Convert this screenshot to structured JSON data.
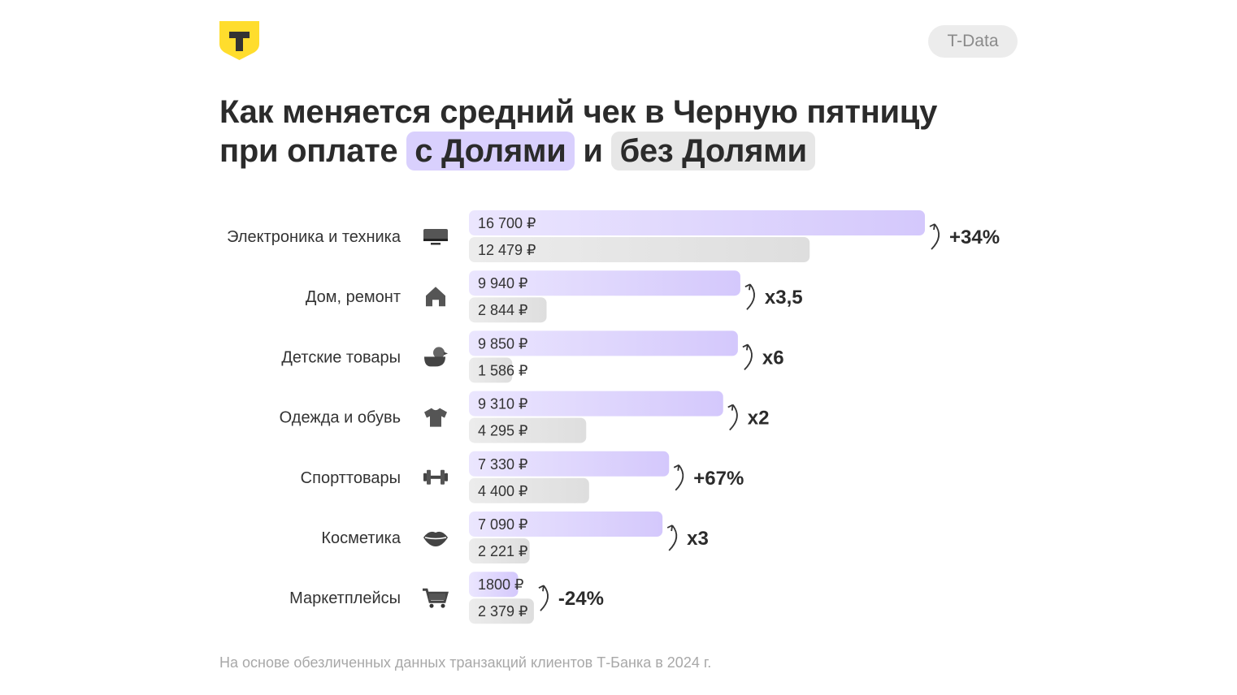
{
  "header": {
    "brand_letter": "T",
    "badge": "T-Data"
  },
  "title": {
    "line1": "Как меняется средний чек в Черную пятницу",
    "line2_prefix": "при оплате ",
    "highlight1": "с Долями",
    "connector": " и ",
    "highlight2": "без Долями"
  },
  "footer": "На основе обезличенных данных транзакций клиентов Т-Банка в 2024 г.",
  "colors": {
    "with": "#d6cbfc",
    "without": "#e3e3e3",
    "logo": "#ffdd2d"
  },
  "chart_data": {
    "type": "bar",
    "orientation": "horizontal",
    "currency": "₽",
    "categories": [
      "Электроника и техника",
      "Дом, ремонт",
      "Детские товары",
      "Одежда и обувь",
      "Спорттовары",
      "Косметика",
      "Маркетплейсы"
    ],
    "icons": [
      "monitor-icon",
      "house-icon",
      "duck-toy-icon",
      "tshirt-icon",
      "dumbbell-icon",
      "lips-icon",
      "cart-icon"
    ],
    "series": [
      {
        "name": "с Долями",
        "values": [
          16700,
          9940,
          9850,
          9310,
          7330,
          7090,
          1800
        ],
        "labels": [
          "16 700 ₽",
          "9 940 ₽",
          "9 850 ₽",
          "9 310 ₽",
          "7 330 ₽",
          "7 090 ₽",
          "1800 ₽"
        ]
      },
      {
        "name": "без Долями",
        "values": [
          12479,
          2844,
          1586,
          4295,
          4400,
          2221,
          2379
        ],
        "labels": [
          "12 479 ₽",
          "2 844 ₽",
          "1 586 ₽",
          "4 295 ₽",
          "4 400 ₽",
          "2 221 ₽",
          "2 379 ₽"
        ]
      }
    ],
    "changes": [
      "+34%",
      "x3,5",
      "x6",
      "x2",
      "+67%",
      "x3",
      "-24%"
    ]
  }
}
